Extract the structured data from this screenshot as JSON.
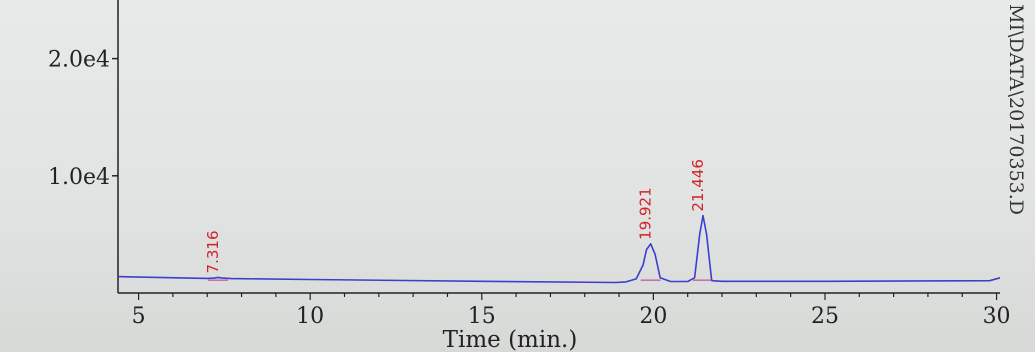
{
  "chart_data": {
    "type": "line",
    "title": "",
    "xlabel": "Time (min.)",
    "ylabel": "",
    "xlim": [
      4.4,
      30.1
    ],
    "ylim": [
      0,
      25000
    ],
    "x_ticks": [
      5,
      10,
      15,
      20,
      25,
      30
    ],
    "x_tick_labels": [
      "5",
      "10",
      "15",
      "20",
      "25",
      "30"
    ],
    "y_ticks": [
      10000,
      20000
    ],
    "y_tick_labels": [
      "1.0e4",
      "2.0e4"
    ],
    "grid": false,
    "series": [
      {
        "color": "#3b3fd0",
        "x": [
          4.4,
          7.0,
          7.2,
          7.316,
          7.45,
          7.7,
          10.0,
          15.0,
          18.9,
          19.2,
          19.5,
          19.7,
          19.8,
          19.921,
          20.05,
          20.2,
          20.5,
          21.0,
          21.2,
          21.35,
          21.446,
          21.55,
          21.7,
          22.0,
          25.0,
          29.8,
          30.1
        ],
        "y": [
          1400,
          1250,
          1270,
          1330,
          1270,
          1230,
          1150,
          1000,
          900,
          950,
          1200,
          2400,
          3700,
          4200,
          3300,
          1300,
          980,
          980,
          1300,
          5000,
          6600,
          5000,
          1050,
          1000,
          1000,
          1050,
          1300
        ]
      }
    ],
    "annotations": [
      {
        "text": "7.316",
        "x": 7.316,
        "y": 1330,
        "color": "#d2222a"
      },
      {
        "text": "19.921",
        "x": 19.921,
        "y": 4200,
        "color": "#d2222a"
      },
      {
        "text": "21.446",
        "x": 21.446,
        "y": 6600,
        "color": "#d2222a"
      }
    ],
    "side_text": "MI\\DATA\\20170353.D"
  }
}
